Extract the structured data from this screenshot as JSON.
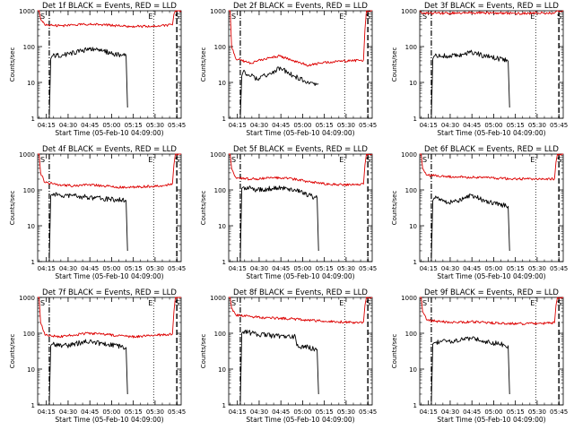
{
  "colors": {
    "events": "#000000",
    "lld": "#dd0000",
    "axes": "#000000",
    "background": "#ffffff"
  },
  "common": {
    "xlabel": "Start Time (05-Feb-10 04:09:00)",
    "ylabel": "Counts/sec",
    "x_ticks": [
      "04:15",
      "04:30",
      "04:45",
      "05:00",
      "05:15",
      "05:30",
      "05:45"
    ],
    "y_ticks": [
      "1",
      "10",
      "100",
      "1000"
    ],
    "x_range_minutes": [
      0,
      99
    ],
    "y_range": [
      1,
      1000
    ],
    "y_scale": "log",
    "markers": {
      "S": "S",
      "E": "E"
    }
  },
  "chart_data": [
    {
      "type": "line",
      "title": "Det 1f BLACK = Events, RED = LLD",
      "xlabel": "Start Time (05-Feb-10 04:09:00)",
      "ylabel": "Counts/sec",
      "x_ticks": [
        "04:15",
        "04:30",
        "04:45",
        "05:00",
        "05:15",
        "05:30",
        "05:45"
      ],
      "y_ticks": [
        "1",
        "10",
        "100",
        "1000"
      ],
      "ylim": [
        1,
        1000
      ],
      "y_scale": "log",
      "series": [
        {
          "x": [
            0,
            1,
            2,
            5,
            15,
            25,
            35,
            45,
            55,
            65,
            75,
            85,
            93,
            94,
            95,
            99
          ],
          "y": [
            1000,
            1000,
            600,
            400,
            380,
            400,
            420,
            410,
            380,
            360,
            370,
            380,
            400,
            800,
            1000,
            1000
          ]
        },
        {
          "x": [
            8,
            9,
            10,
            20,
            30,
            36,
            45,
            55,
            61,
            62
          ],
          "y": [
            1,
            45,
            55,
            60,
            75,
            85,
            75,
            60,
            55,
            2
          ]
        }
      ]
    },
    {
      "type": "line",
      "title": "Det 2f BLACK = Events, RED = LLD",
      "xlabel": "Start Time (05-Feb-10 04:09:00)",
      "ylabel": "Counts/sec",
      "x_ticks": [
        "04:15",
        "04:30",
        "04:45",
        "05:00",
        "05:15",
        "05:30",
        "05:45"
      ],
      "y_ticks": [
        "1",
        "10",
        "100",
        "1000"
      ],
      "ylim": [
        1,
        1000
      ],
      "y_scale": "log",
      "series": [
        {
          "x": [
            0,
            1,
            2,
            5,
            15,
            25,
            35,
            45,
            55,
            65,
            75,
            85,
            93,
            94,
            95,
            99
          ],
          "y": [
            1000,
            1000,
            100,
            45,
            35,
            45,
            55,
            40,
            30,
            35,
            38,
            40,
            42,
            300,
            1000,
            1000
          ]
        },
        {
          "x": [
            8,
            9,
            10,
            20,
            28,
            36,
            45,
            55,
            61,
            62
          ],
          "y": [
            1,
            15,
            20,
            12,
            18,
            25,
            15,
            10,
            9,
            9
          ]
        }
      ]
    },
    {
      "type": "line",
      "title": "Det 3f BLACK = Events, RED = LLD",
      "xlabel": "Start Time (05-Feb-10 04:09:00)",
      "ylabel": "Counts/sec",
      "x_ticks": [
        "04:15",
        "04:30",
        "04:45",
        "05:00",
        "05:15",
        "05:30",
        "05:45"
      ],
      "y_ticks": [
        "1",
        "10",
        "100",
        "1000"
      ],
      "ylim": [
        1,
        1000
      ],
      "y_scale": "log",
      "series": [
        {
          "x": [
            0,
            1,
            5,
            15,
            25,
            35,
            45,
            55,
            65,
            75,
            85,
            93,
            94,
            95,
            99
          ],
          "y": [
            1000,
            900,
            850,
            850,
            870,
            880,
            870,
            860,
            850,
            850,
            860,
            870,
            950,
            1000,
            1000
          ]
        },
        {
          "x": [
            8,
            9,
            10,
            20,
            30,
            36,
            45,
            55,
            61,
            62
          ],
          "y": [
            1,
            45,
            55,
            55,
            60,
            70,
            55,
            45,
            40,
            2
          ]
        }
      ]
    },
    {
      "type": "line",
      "title": "Det 4f BLACK = Events, RED = LLD",
      "xlabel": "Start Time (05-Feb-10 04:09:00)",
      "ylabel": "Counts/sec",
      "x_ticks": [
        "04:15",
        "04:30",
        "04:45",
        "05:00",
        "05:15",
        "05:30",
        "05:45"
      ],
      "y_ticks": [
        "1",
        "10",
        "100",
        "1000"
      ],
      "ylim": [
        1,
        1000
      ],
      "y_scale": "log",
      "series": [
        {
          "x": [
            0,
            1,
            2,
            5,
            15,
            25,
            35,
            45,
            55,
            65,
            75,
            85,
            93,
            94,
            95,
            99
          ],
          "y": [
            1000,
            1000,
            300,
            160,
            140,
            130,
            140,
            130,
            120,
            120,
            125,
            130,
            150,
            500,
            1000,
            1000
          ]
        },
        {
          "x": [
            8,
            9,
            10,
            20,
            30,
            40,
            50,
            61,
            62
          ],
          "y": [
            1,
            70,
            75,
            70,
            65,
            60,
            55,
            50,
            2
          ]
        }
      ]
    },
    {
      "type": "line",
      "title": "Det 5f BLACK = Events, RED = LLD",
      "xlabel": "Start Time (05-Feb-10 04:09:00)",
      "ylabel": "Counts/sec",
      "x_ticks": [
        "04:15",
        "04:30",
        "04:45",
        "05:00",
        "05:15",
        "05:30",
        "05:45"
      ],
      "y_ticks": [
        "1",
        "10",
        "100",
        "1000"
      ],
      "ylim": [
        1,
        1000
      ],
      "y_scale": "log",
      "series": [
        {
          "x": [
            0,
            1,
            2,
            5,
            15,
            25,
            35,
            45,
            55,
            65,
            75,
            85,
            93,
            94,
            95,
            99
          ],
          "y": [
            1000,
            1000,
            400,
            220,
            200,
            210,
            220,
            200,
            170,
            150,
            140,
            140,
            145,
            500,
            1000,
            1000
          ]
        },
        {
          "x": [
            8,
            9,
            10,
            20,
            30,
            36,
            45,
            55,
            61,
            62
          ],
          "y": [
            1,
            110,
            120,
            100,
            110,
            120,
            100,
            70,
            60,
            2
          ]
        }
      ]
    },
    {
      "type": "line",
      "title": "Det 6f BLACK = Events, RED = LLD",
      "xlabel": "Start Time (05-Feb-10 04:09:00)",
      "ylabel": "Counts/sec",
      "x_ticks": [
        "04:15",
        "04:30",
        "04:45",
        "05:00",
        "05:15",
        "05:30",
        "05:45"
      ],
      "y_ticks": [
        "1",
        "10",
        "100",
        "1000"
      ],
      "ylim": [
        1,
        1000
      ],
      "y_scale": "log",
      "series": [
        {
          "x": [
            0,
            1,
            2,
            5,
            15,
            25,
            35,
            45,
            55,
            65,
            75,
            85,
            93,
            94,
            95,
            99
          ],
          "y": [
            1000,
            1000,
            400,
            260,
            240,
            230,
            225,
            220,
            210,
            205,
            200,
            200,
            205,
            600,
            1000,
            1000
          ]
        },
        {
          "x": [
            8,
            9,
            10,
            20,
            30,
            36,
            45,
            55,
            61,
            62
          ],
          "y": [
            1,
            50,
            60,
            45,
            55,
            70,
            50,
            40,
            35,
            2
          ]
        }
      ]
    },
    {
      "type": "line",
      "title": "Det 7f BLACK = Events, RED = LLD",
      "xlabel": "Start Time (05-Feb-10 04:09:00)",
      "ylabel": "Counts/sec",
      "x_ticks": [
        "04:15",
        "04:30",
        "04:45",
        "05:00",
        "05:15",
        "05:30",
        "05:45"
      ],
      "y_ticks": [
        "1",
        "10",
        "100",
        "1000"
      ],
      "ylim": [
        1,
        1000
      ],
      "y_scale": "log",
      "series": [
        {
          "x": [
            0,
            1,
            2,
            5,
            15,
            25,
            35,
            45,
            55,
            65,
            75,
            85,
            93,
            94,
            95,
            99
          ],
          "y": [
            1000,
            1000,
            200,
            90,
            80,
            90,
            100,
            95,
            85,
            80,
            85,
            90,
            95,
            400,
            1000,
            1000
          ]
        },
        {
          "x": [
            8,
            9,
            10,
            20,
            30,
            36,
            45,
            55,
            61,
            62
          ],
          "y": [
            1,
            45,
            50,
            45,
            55,
            60,
            50,
            45,
            40,
            2
          ]
        }
      ]
    },
    {
      "type": "line",
      "title": "Det 8f BLACK = Events, RED = LLD",
      "xlabel": "Start Time (05-Feb-10 04:09:00)",
      "ylabel": "Counts/sec",
      "x_ticks": [
        "04:15",
        "04:30",
        "04:45",
        "05:00",
        "05:15",
        "05:30",
        "05:45"
      ],
      "y_ticks": [
        "1",
        "10",
        "100",
        "1000"
      ],
      "ylim": [
        1,
        1000
      ],
      "y_scale": "log",
      "series": [
        {
          "x": [
            0,
            1,
            2,
            5,
            15,
            25,
            35,
            45,
            55,
            65,
            75,
            85,
            93,
            94,
            95,
            99
          ],
          "y": [
            1000,
            1000,
            500,
            320,
            290,
            270,
            260,
            250,
            230,
            220,
            210,
            200,
            205,
            600,
            1000,
            1000
          ]
        },
        {
          "x": [
            8,
            9,
            10,
            20,
            30,
            40,
            46,
            47,
            55,
            61,
            62
          ],
          "y": [
            1,
            100,
            110,
            95,
            85,
            80,
            80,
            45,
            40,
            35,
            2
          ]
        }
      ]
    },
    {
      "type": "line",
      "title": "Det 9f BLACK = Events, RED = LLD",
      "xlabel": "Start Time (05-Feb-10 04:09:00)",
      "ylabel": "Counts/sec",
      "x_ticks": [
        "04:15",
        "04:30",
        "04:45",
        "05:00",
        "05:15",
        "05:30",
        "05:45"
      ],
      "y_ticks": [
        "1",
        "10",
        "100",
        "1000"
      ],
      "ylim": [
        1,
        1000
      ],
      "y_scale": "log",
      "series": [
        {
          "x": [
            0,
            1,
            2,
            5,
            15,
            25,
            35,
            45,
            55,
            65,
            75,
            85,
            93,
            94,
            95,
            99
          ],
          "y": [
            1000,
            1000,
            400,
            230,
            210,
            200,
            210,
            200,
            190,
            185,
            185,
            190,
            195,
            600,
            1000,
            1000
          ]
        },
        {
          "x": [
            8,
            9,
            10,
            20,
            30,
            36,
            45,
            55,
            61,
            62
          ],
          "y": [
            1,
            50,
            55,
            60,
            65,
            70,
            60,
            50,
            45,
            2
          ]
        }
      ]
    }
  ]
}
